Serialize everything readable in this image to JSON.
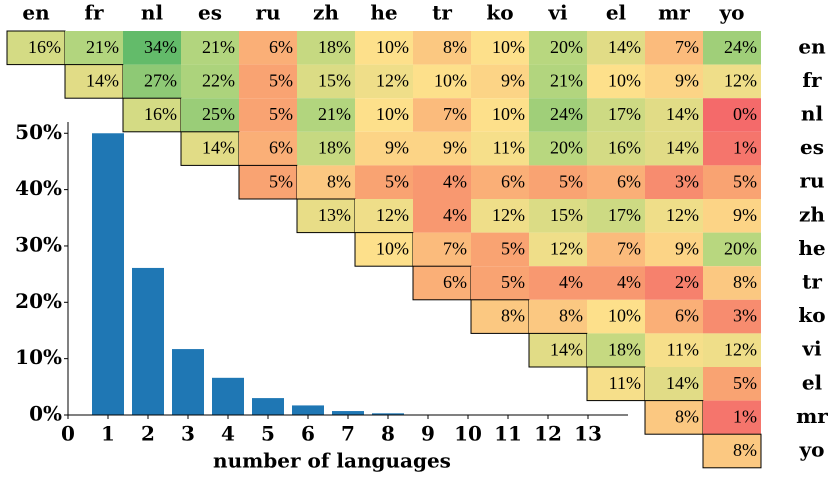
{
  "chart_data": [
    {
      "type": "heatmap",
      "columns": [
        "en",
        "fr",
        "nl",
        "es",
        "ru",
        "zh",
        "he",
        "tr",
        "ko",
        "vi",
        "el",
        "mr",
        "yo"
      ],
      "rows": [
        "en",
        "fr",
        "nl",
        "es",
        "ru",
        "zh",
        "he",
        "tr",
        "ko",
        "vi",
        "el",
        "mr",
        "yo"
      ],
      "values": [
        [
          16,
          21,
          34,
          21,
          6,
          18,
          10,
          8,
          10,
          20,
          14,
          7,
          24
        ],
        [
          null,
          14,
          27,
          22,
          5,
          15,
          12,
          10,
          9,
          21,
          10,
          9,
          12
        ],
        [
          null,
          null,
          16,
          25,
          5,
          21,
          10,
          7,
          10,
          24,
          17,
          14,
          0
        ],
        [
          null,
          null,
          null,
          14,
          6,
          18,
          9,
          9,
          11,
          20,
          16,
          14,
          1
        ],
        [
          null,
          null,
          null,
          null,
          5,
          8,
          5,
          4,
          6,
          5,
          6,
          3,
          5
        ],
        [
          null,
          null,
          null,
          null,
          null,
          13,
          12,
          4,
          12,
          15,
          17,
          12,
          9
        ],
        [
          null,
          null,
          null,
          null,
          null,
          null,
          10,
          7,
          5,
          12,
          7,
          9,
          20
        ],
        [
          null,
          null,
          null,
          null,
          null,
          null,
          null,
          6,
          5,
          4,
          4,
          2,
          8
        ],
        [
          null,
          null,
          null,
          null,
          null,
          null,
          null,
          null,
          8,
          8,
          10,
          6,
          3
        ],
        [
          null,
          null,
          null,
          null,
          null,
          null,
          null,
          null,
          null,
          14,
          18,
          11,
          12
        ],
        [
          null,
          null,
          null,
          null,
          null,
          null,
          null,
          null,
          null,
          null,
          11,
          14,
          5
        ],
        [
          null,
          null,
          null,
          null,
          null,
          null,
          null,
          null,
          null,
          null,
          null,
          8,
          1
        ],
        [
          null,
          null,
          null,
          null,
          null,
          null,
          null,
          null,
          null,
          null,
          null,
          null,
          8
        ]
      ],
      "value_labels": [
        [
          "16%",
          "21%",
          "34%",
          "21%",
          "6%",
          "18%",
          "10%",
          "8%",
          "10%",
          "20%",
          "14%",
          "7%",
          "24%"
        ],
        [
          null,
          "14%",
          "27%",
          "22%",
          "5%",
          "15%",
          "12%",
          "10%",
          "9%",
          "21%",
          "10%",
          "9%",
          "12%"
        ],
        [
          null,
          null,
          "16%",
          "25%",
          "5%",
          "21%",
          "10%",
          "7%",
          "10%",
          "24%",
          "17%",
          "14%",
          "0%"
        ],
        [
          null,
          null,
          null,
          "14%",
          "6%",
          "18%",
          "9%",
          "9%",
          "11%",
          "20%",
          "16%",
          "14%",
          "1%"
        ],
        [
          null,
          null,
          null,
          null,
          "5%",
          "8%",
          "5%",
          "4%",
          "6%",
          "5%",
          "6%",
          "3%",
          "5%"
        ],
        [
          null,
          null,
          null,
          null,
          null,
          "13%",
          "12%",
          "4%",
          "12%",
          "15%",
          "17%",
          "12%",
          "9%"
        ],
        [
          null,
          null,
          null,
          null,
          null,
          null,
          "10%",
          "7%",
          "5%",
          "12%",
          "7%",
          "9%",
          "20%"
        ],
        [
          null,
          null,
          null,
          null,
          null,
          null,
          null,
          "6%",
          "5%",
          "4%",
          "4%",
          "2%",
          "8%"
        ],
        [
          null,
          null,
          null,
          null,
          null,
          null,
          null,
          null,
          "8%",
          "8%",
          "10%",
          "6%",
          "3%"
        ],
        [
          null,
          null,
          null,
          null,
          null,
          null,
          null,
          null,
          null,
          "14%",
          "18%",
          "11%",
          "12%"
        ],
        [
          null,
          null,
          null,
          null,
          null,
          null,
          null,
          null,
          null,
          null,
          "11%",
          "14%",
          "5%"
        ],
        [
          null,
          null,
          null,
          null,
          null,
          null,
          null,
          null,
          null,
          null,
          null,
          "8%",
          "1%"
        ],
        [
          null,
          null,
          null,
          null,
          null,
          null,
          null,
          null,
          null,
          null,
          null,
          null,
          "8%"
        ]
      ],
      "colorscale": [
        [
          0,
          "#f46a6a"
        ],
        [
          5,
          "#f9a372"
        ],
        [
          10,
          "#fde08b"
        ],
        [
          20,
          "#b8d77f"
        ],
        [
          34,
          "#63bb6a"
        ]
      ]
    },
    {
      "type": "bar",
      "x": [
        1,
        2,
        3,
        4,
        5,
        6,
        7,
        8
      ],
      "values": [
        50,
        26.1,
        11.7,
        6.6,
        3.0,
        1.7,
        0.7,
        0.3
      ],
      "color": "#1f77b4",
      "xlabel": "number of languages",
      "xlim": [
        0,
        14
      ],
      "xticks": [
        0,
        1,
        2,
        3,
        4,
        5,
        6,
        7,
        8,
        9,
        10,
        11,
        12,
        13
      ],
      "ylim": [
        0,
        52
      ],
      "yticks": [
        {
          "value": 0,
          "label": "0%"
        },
        {
          "value": 10,
          "label": "10%"
        },
        {
          "value": 20,
          "label": "20%"
        },
        {
          "value": 30,
          "label": "30%"
        },
        {
          "value": 40,
          "label": "40%"
        },
        {
          "value": 50,
          "label": "50%"
        }
      ]
    }
  ]
}
